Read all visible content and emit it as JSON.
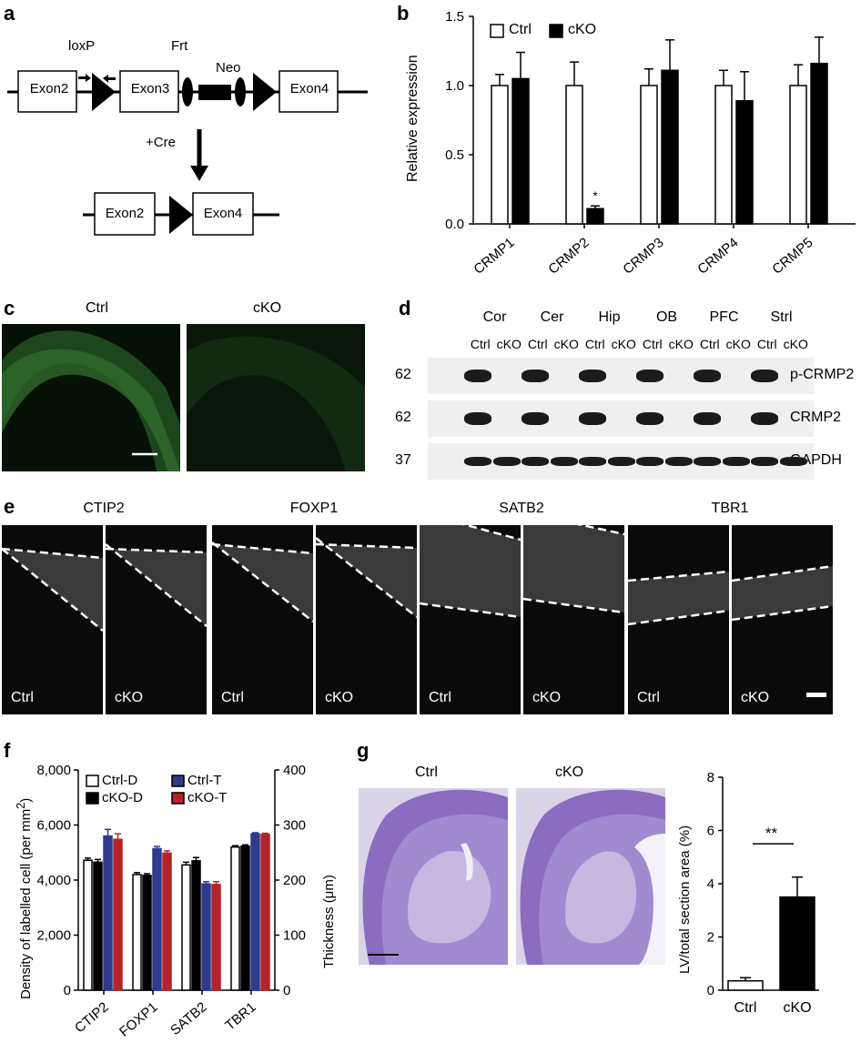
{
  "panels": {
    "a": "a",
    "b": "b",
    "c": "c",
    "d": "d",
    "e": "e",
    "f": "f",
    "g": "g"
  },
  "panel_a": {
    "top_labels": {
      "loxp": "loxP",
      "frt": "Frt",
      "neo": "Neo"
    },
    "exons_top": [
      "Exon2",
      "Exon3",
      "Exon4"
    ],
    "cre": "+Cre",
    "exons_bottom": [
      "Exon2",
      "Exon4"
    ]
  },
  "panel_c": {
    "ctrl": "Ctrl",
    "cko": "cKO"
  },
  "panel_d": {
    "regions": [
      "Cor",
      "Cer",
      "Hip",
      "OB",
      "PFC",
      "Strl"
    ],
    "lane_pair": [
      "Ctrl",
      "cKO"
    ],
    "rows": [
      {
        "mw": "62",
        "name": "p-CRMP2",
        "cko_band": false
      },
      {
        "mw": "62",
        "name": "CRMP2",
        "cko_band": false
      },
      {
        "mw": "37",
        "name": "GAPDH",
        "cko_band": true
      }
    ]
  },
  "panel_e": {
    "markers": [
      "CTIP2",
      "FOXP1",
      "SATB2",
      "TBR1"
    ],
    "ctrl": "Ctrl",
    "cko": "cKO"
  },
  "panel_g": {
    "ctrl": "Ctrl",
    "cko": "cKO"
  },
  "chart_data": [
    {
      "panel": "b",
      "type": "bar",
      "categories": [
        "CRMP1",
        "CRMP2",
        "CRMP3",
        "CRMP4",
        "CRMP5"
      ],
      "series": [
        {
          "name": "Ctrl",
          "values": [
            1.0,
            1.0,
            1.0,
            1.0,
            1.0
          ],
          "errors": [
            0.08,
            0.17,
            0.12,
            0.11,
            0.15
          ],
          "color": "#ffffff"
        },
        {
          "name": "cKO",
          "values": [
            1.05,
            0.11,
            1.11,
            0.89,
            1.16
          ],
          "errors": [
            0.19,
            0.02,
            0.22,
            0.21,
            0.19
          ],
          "color": "#000000"
        }
      ],
      "ylabel": "Relative expression",
      "ylim": [
        0,
        1.5
      ],
      "yticks": [
        "0.0",
        "0.5",
        "1.0",
        "1.5"
      ],
      "annotation": "*"
    },
    {
      "panel": "f",
      "type": "bar",
      "categories": [
        "CTIP2",
        "FOXP1",
        "SATB2",
        "TBR1"
      ],
      "series": [
        {
          "name": "Ctrl-D",
          "axis": "left",
          "values": [
            4720,
            4200,
            4550,
            5200
          ],
          "errors": [
            80,
            70,
            100,
            50
          ],
          "color": "#ffffff"
        },
        {
          "name": "cKO-D",
          "axis": "left",
          "values": [
            4650,
            4170,
            4700,
            5230
          ],
          "errors": [
            100,
            60,
            120,
            50
          ],
          "color": "#000000"
        },
        {
          "name": "Ctrl-T",
          "axis": "right",
          "values": [
            280,
            257,
            193,
            284
          ],
          "errors": [
            12,
            4,
            4,
            2
          ],
          "color": "#2e3a8c"
        },
        {
          "name": "cKO-T",
          "axis": "right",
          "values": [
            274,
            249,
            192,
            283
          ],
          "errors": [
            10,
            4,
            5,
            2
          ],
          "color": "#b3242a"
        }
      ],
      "ylabel_left": "Density of labelled cell (per mm",
      "ylabel_left_sup": "2",
      "ylabel_left_end": ")",
      "ylabel_right": "Thickness (μm)",
      "ylim_left": [
        0,
        8000
      ],
      "ylim_right": [
        0,
        400
      ],
      "yticks_left": [
        "0",
        "2,000",
        "4,000",
        "6,000",
        "8,000"
      ],
      "yticks_right": [
        "0",
        "100",
        "200",
        "300",
        "400"
      ]
    },
    {
      "panel": "g",
      "type": "bar",
      "categories": [
        "Ctrl",
        "cKO"
      ],
      "values": [
        0.35,
        3.5
      ],
      "errors": [
        0.12,
        0.75
      ],
      "colors": [
        "#ffffff",
        "#000000"
      ],
      "ylabel": "LV/total section area (%)",
      "ylim": [
        0,
        8
      ],
      "yticks": [
        "0",
        "2",
        "4",
        "6",
        "8"
      ],
      "annotation": "**"
    }
  ]
}
